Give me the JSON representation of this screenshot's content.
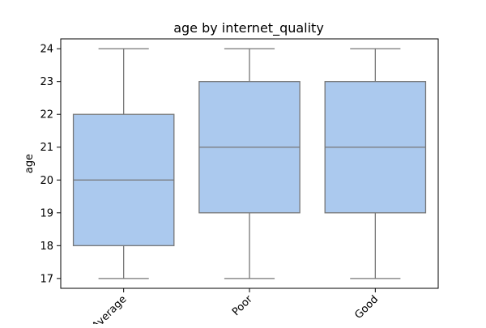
{
  "chart_data": {
    "type": "box",
    "title": "age by internet_quality",
    "xlabel": "",
    "ylabel": "age",
    "ylim": [
      16.7,
      24.3
    ],
    "yticks": [
      17,
      18,
      19,
      20,
      21,
      22,
      23,
      24
    ],
    "categories": [
      "Average",
      "Poor",
      "Good"
    ],
    "boxes": [
      {
        "category": "Average",
        "whisker_low": 17,
        "q1": 18,
        "median": 20,
        "q3": 22,
        "whisker_high": 24
      },
      {
        "category": "Poor",
        "whisker_low": 17,
        "q1": 19,
        "median": 21,
        "q3": 23,
        "whisker_high": 24
      },
      {
        "category": "Good",
        "whisker_low": 17,
        "q1": 19,
        "median": 21,
        "q3": 23,
        "whisker_high": 24
      }
    ],
    "box_color": "#abc9ee",
    "line_color": "#767676",
    "grid": false
  }
}
